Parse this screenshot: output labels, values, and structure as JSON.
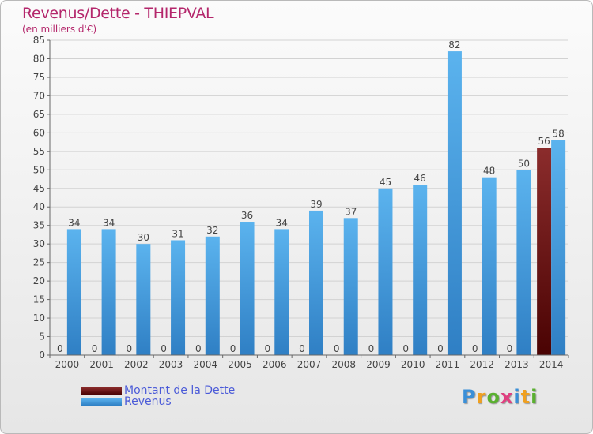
{
  "header": {
    "title": "Revenus/Dette - THIEPVAL",
    "subtitle": "(en milliers d'€)"
  },
  "legend": {
    "items": [
      {
        "label": "Montant de la Dette",
        "color": "#6b0a0a"
      },
      {
        "label": "Revenus",
        "color": "#4aa3e3"
      }
    ]
  },
  "logo": {
    "text": "Proxiti"
  },
  "chart_data": {
    "type": "bar",
    "title": "Revenus/Dette - THIEPVAL",
    "subtitle": "(en milliers d'€)",
    "categories": [
      "2000",
      "2001",
      "2002",
      "2003",
      "2004",
      "2005",
      "2006",
      "2007",
      "2008",
      "2009",
      "2010",
      "2011",
      "2012",
      "2013",
      "2014"
    ],
    "series": [
      {
        "name": "Montant de la Dette",
        "color": "#6b0a0a",
        "values": [
          0,
          0,
          0,
          0,
          0,
          0,
          0,
          0,
          0,
          0,
          0,
          0,
          0,
          0,
          56
        ]
      },
      {
        "name": "Revenus",
        "color": "#4aa3e3",
        "values": [
          34,
          34,
          30,
          31,
          32,
          36,
          34,
          39,
          37,
          45,
          46,
          82,
          48,
          50,
          58
        ]
      }
    ],
    "yticks": [
      0,
      5,
      10,
      15,
      20,
      25,
      30,
      35,
      40,
      45,
      50,
      55,
      60,
      65,
      70,
      75,
      80,
      85
    ],
    "ylim": [
      0,
      85
    ],
    "grid": true,
    "legend_position": "bottom-left"
  }
}
